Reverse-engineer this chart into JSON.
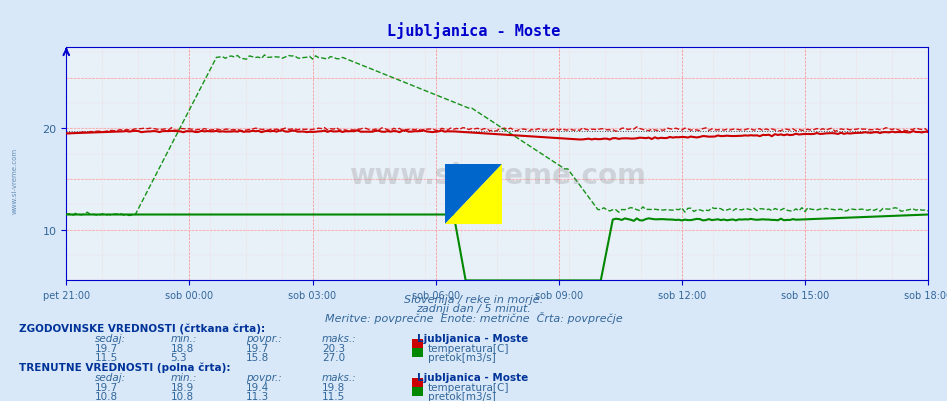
{
  "title": "Ljubljanica - Moste",
  "title_color": "#0000cc",
  "bg_color": "#d8e8f8",
  "plot_bg_color": "#e8f0f8",
  "grid_color_major": "#ff9999",
  "grid_color_minor": "#ffcccc",
  "x_labels": [
    "pet 21:00",
    "sob 00:00",
    "sob 03:00",
    "sob 06:00",
    "sob 09:00",
    "sob 12:00",
    "sob 15:00",
    "sob 18:00"
  ],
  "y_ticks": [
    10,
    20
  ],
  "y_min": 5,
  "y_max": 28,
  "subtitle1": "Slovenija / reke in morje.",
  "subtitle2": "zadnji dan / 5 minut.",
  "subtitle3": "Meritve: povprečne  Enote: metrične  Črta: povprečje",
  "text_color": "#336699",
  "watermark": "www.si-vreme.com",
  "hist_temp_sedaj": 19.7,
  "hist_temp_min": 18.8,
  "hist_temp_povpr": 19.7,
  "hist_temp_maks": 20.3,
  "hist_flow_sedaj": 11.5,
  "hist_flow_min": 5.3,
  "hist_flow_povpr": 15.8,
  "hist_flow_maks": 27.0,
  "cur_temp_sedaj": 19.7,
  "cur_temp_min": 18.9,
  "cur_temp_povpr": 19.4,
  "cur_temp_maks": 19.8,
  "cur_flow_sedaj": 10.8,
  "cur_flow_min": 10.8,
  "cur_flow_povpr": 11.3,
  "cur_flow_maks": 11.5,
  "n_points": 288,
  "temp_color": "#cc0000",
  "flow_color": "#008800",
  "axis_color": "#0000cc"
}
